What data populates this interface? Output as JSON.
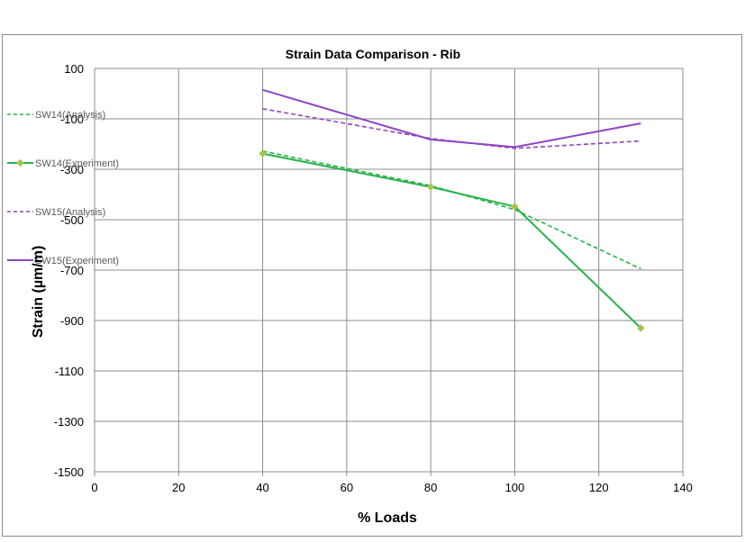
{
  "chart_data": {
    "type": "line",
    "title": "Strain Data Comparison  -  Rib",
    "xlabel": "% Loads",
    "ylabel": "Strain (µm/m)",
    "xlim": [
      0,
      140
    ],
    "ylim": [
      -1500,
      100
    ],
    "x_ticks": [
      0,
      20,
      40,
      60,
      80,
      100,
      120,
      140
    ],
    "y_ticks": [
      100,
      -100,
      -300,
      -500,
      -700,
      -900,
      -1100,
      -1300,
      -1500
    ],
    "grid": true,
    "legend_position": "left",
    "series": [
      {
        "name": "SW14(Analysis)",
        "x": [
          40,
          80,
          100,
          130
        ],
        "values": [
          -228,
          -365,
          -460,
          -695
        ],
        "color": "#27b34a",
        "dash": true,
        "marker": false
      },
      {
        "name": "SW14(Experiment)",
        "x": [
          40,
          80,
          100,
          130
        ],
        "values": [
          -238,
          -370,
          -448,
          -930
        ],
        "color": "#27b34a",
        "dash": false,
        "marker": true,
        "marker_color": "#a8c44a"
      },
      {
        "name": "SW15(Analysis)",
        "x": [
          40,
          80,
          100,
          130
        ],
        "values": [
          -60,
          -178,
          -217,
          -188
        ],
        "color": "#8e44c4",
        "dash": true,
        "marker": false
      },
      {
        "name": "SW15(Experiment)",
        "x": [
          40,
          80,
          100,
          130
        ],
        "values": [
          15,
          -182,
          -212,
          -118
        ],
        "color": "#8e44c4",
        "dash": false,
        "marker": false
      }
    ]
  }
}
